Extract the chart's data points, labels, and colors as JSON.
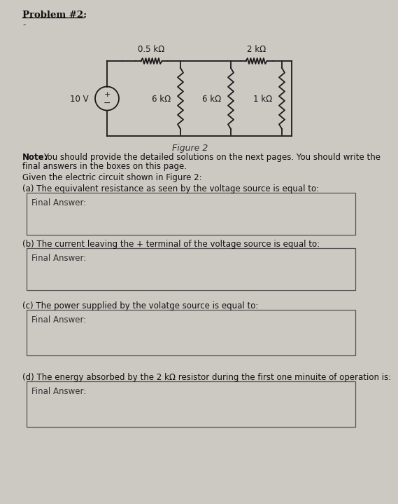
{
  "bg_color": "#ccc8c2",
  "figure_caption": "Figure 2",
  "note_bold": "Note:",
  "note_rest": "You should provide the detailed solutions on the next pages. You should write the",
  "note_rest2": "final answers in the boxes on this page.",
  "given_text": "Given the electric circuit shown in Figure 2:",
  "questions": [
    "(a) The equivalent resistance as seen by the voltage source is equal to:",
    "(b) The current leaving the + terminal of the voltage source is equal to:",
    "(c) The power supplied by the volatge source is equal to:",
    "(d) The energy absorbed by the 2 kΩ resistor during the first one minuite of operation is:"
  ],
  "answer_label": "Final Answer:",
  "resistors_top": [
    "0.5 kΩ",
    "2 kΩ"
  ],
  "resistors_side": [
    "6 kΩ",
    "6 kΩ",
    "1 kΩ"
  ],
  "voltage_source": "10 V",
  "problem_title": "Problem #2:",
  "dash": "-"
}
